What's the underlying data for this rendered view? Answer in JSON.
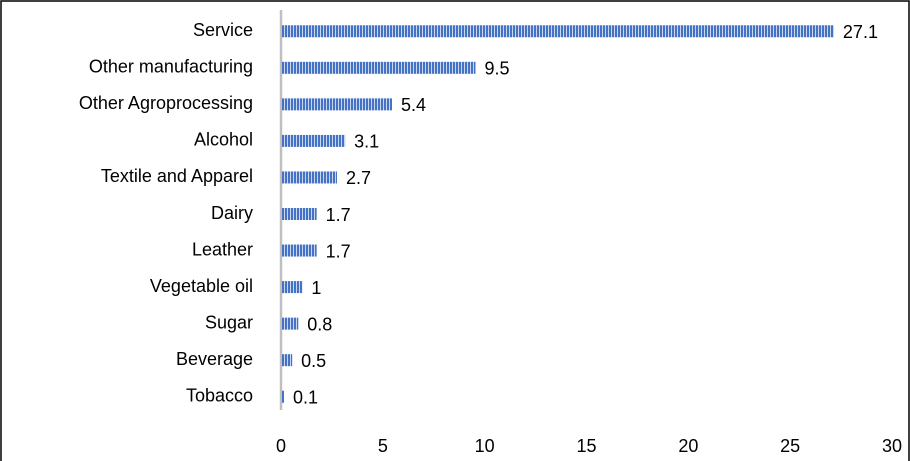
{
  "chart_data": {
    "type": "barh",
    "categories": [
      "Service",
      "Other manufacturing",
      "Other Agroprocessing",
      "Alcohol",
      "Textile and Apparel",
      "Dairy",
      "Leather",
      "Vegetable oil",
      "Sugar",
      "Beverage",
      "Tobacco"
    ],
    "values": [
      27.1,
      9.5,
      5.4,
      3.1,
      2.7,
      1.7,
      1.7,
      1,
      0.8,
      0.5,
      0.1
    ],
    "color": "#4472c4",
    "xlim": [
      0,
      30
    ],
    "xticks": [
      0,
      5,
      10,
      15,
      20,
      25,
      30
    ]
  }
}
